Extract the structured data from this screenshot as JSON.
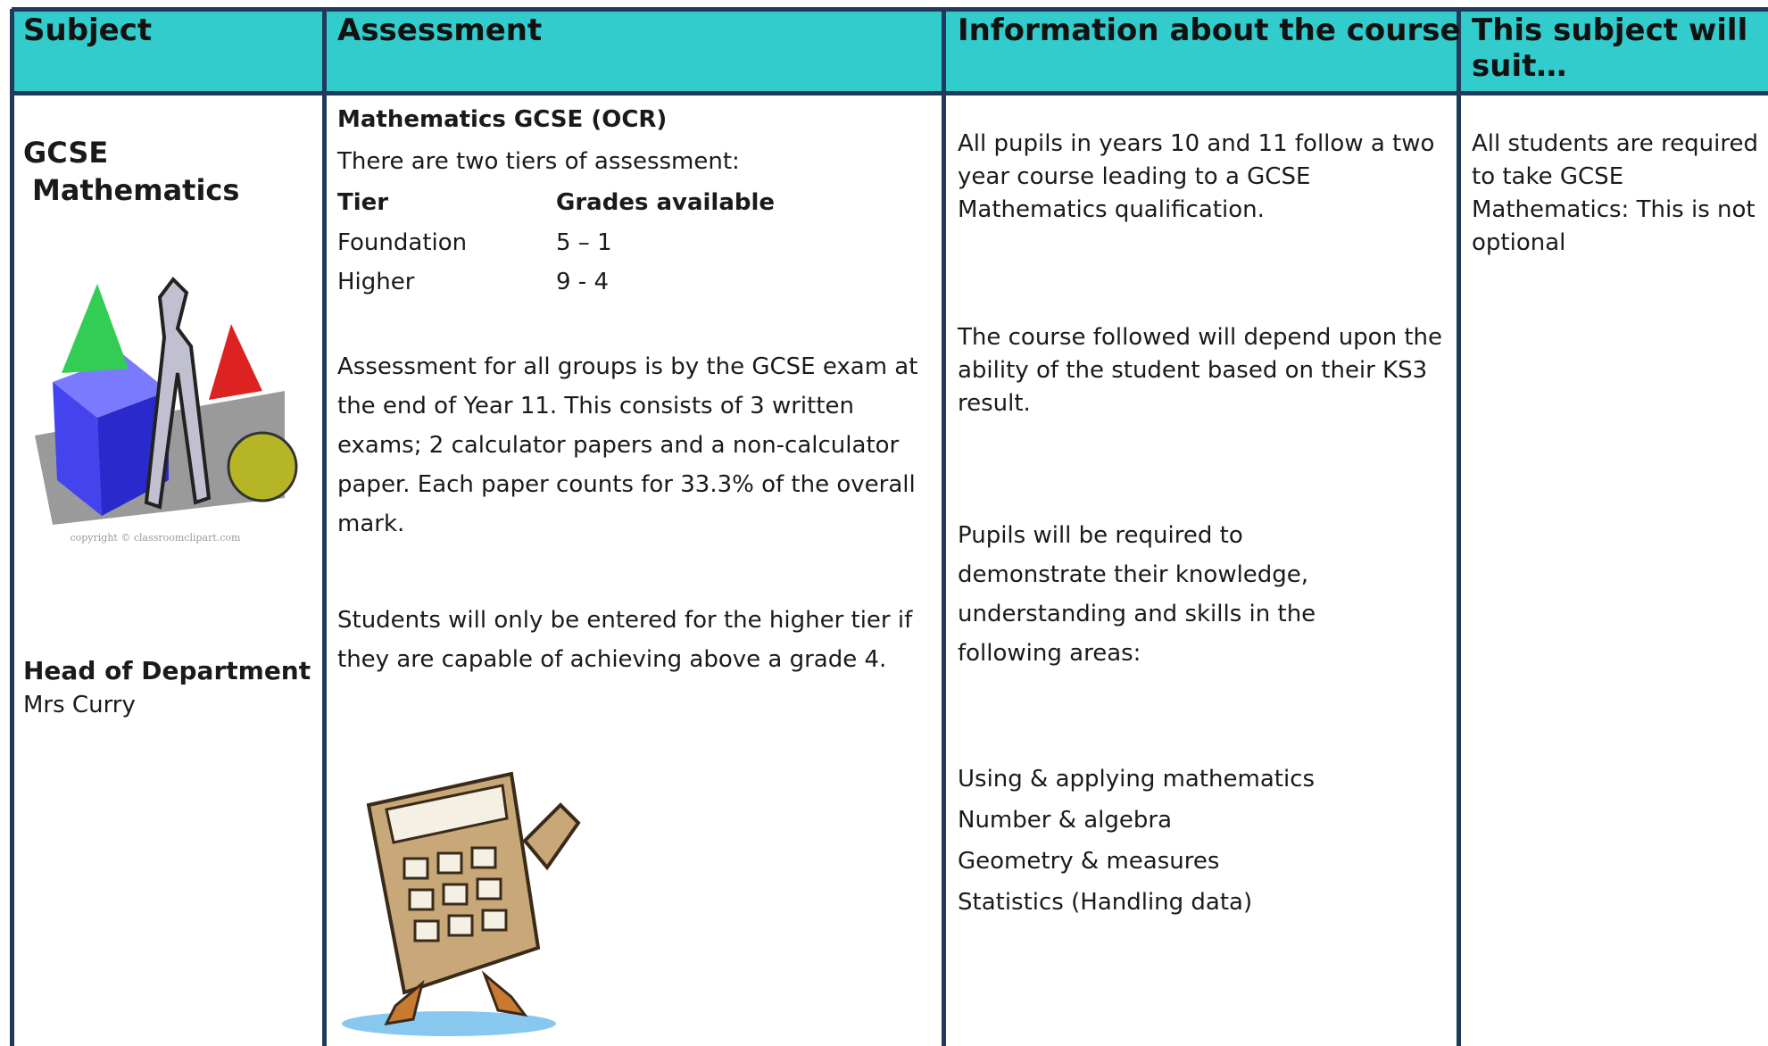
{
  "table": {
    "headers": [
      "Subject",
      "Assessment",
      "Information about the course",
      "This subject will suit…"
    ],
    "subject": {
      "title": "GCSE Mathematics",
      "image_caption": "copyright © classroomclipart.com",
      "head_label": "Head of Department",
      "head_name": "Mrs Curry"
    },
    "assessment": {
      "title": "Mathematics GCSE (OCR)",
      "intro": "There are two tiers of assessment:",
      "tier_header": [
        "Tier",
        "Grades available"
      ],
      "tiers": [
        [
          "Foundation",
          "5 – 1"
        ],
        [
          "Higher",
          "9 - 4"
        ]
      ],
      "paragraphs": [
        "Assessment for all groups is by the GCSE exam at the end of Year 11. This consists of 3 written exams; 2 calculator papers and a non-calculator paper. Each paper counts for 33.3% of the overall mark.",
        "Students will only be entered for the higher tier if they are capable of achieving above a grade 4."
      ]
    },
    "information": {
      "paragraphs": [
        "All pupils in years 10 and 11 follow a two year course leading to a GCSE Mathematics qualification.",
        "The course followed will depend upon the ability of the student based on their KS3 result.",
        "Pupils will be required to demonstrate their knowledge, understanding and skills in the following areas:"
      ],
      "areas": [
        "Using & applying mathematics",
        "Number & algebra",
        "Geometry & measures",
        "Statistics (Handling data)"
      ]
    },
    "suit": "All students are required to take GCSE Mathematics: This is not optional"
  }
}
